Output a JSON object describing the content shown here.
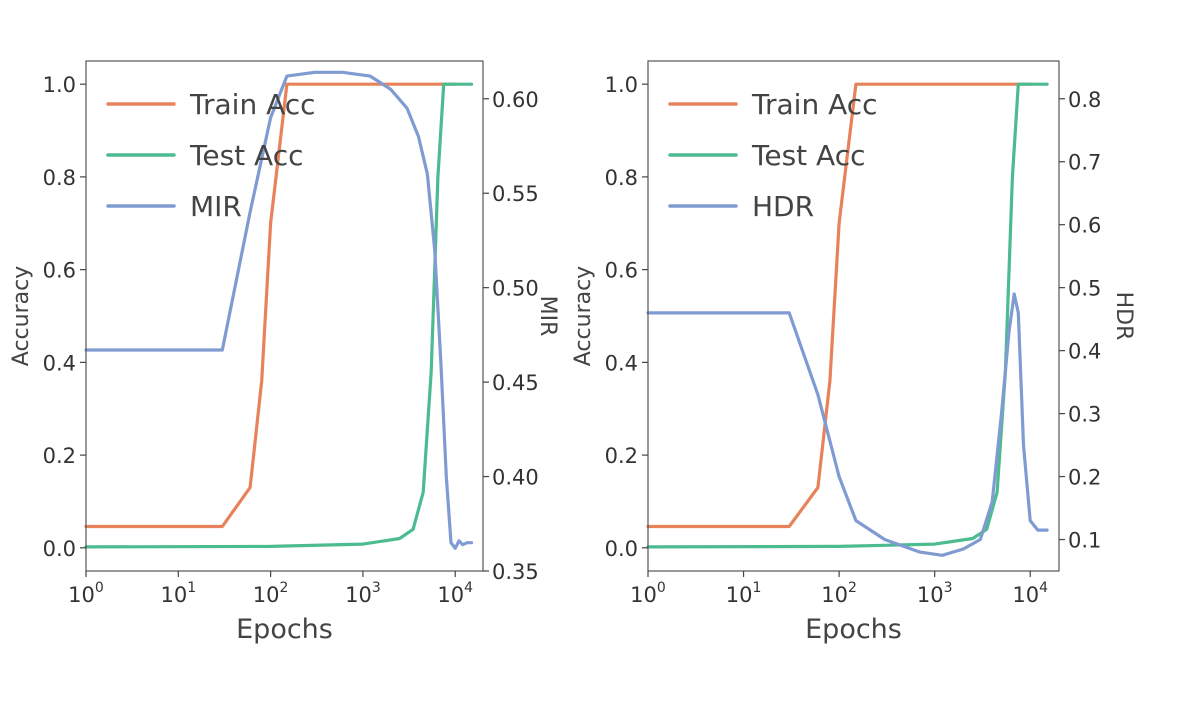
{
  "chart_data": [
    {
      "type": "line",
      "xlabel": "Epochs",
      "ylabel": "Accuracy",
      "y2label": "MIR",
      "xscale": "log",
      "xlim": [
        1,
        20000
      ],
      "ylim": [
        -0.05,
        1.05
      ],
      "y2lim": [
        0.35,
        0.62
      ],
      "xticks": [
        {
          "base": "10",
          "exp": "0"
        },
        {
          "base": "10",
          "exp": "1"
        },
        {
          "base": "10",
          "exp": "2"
        },
        {
          "base": "10",
          "exp": "3"
        },
        {
          "base": "10",
          "exp": "4"
        }
      ],
      "xtick_values": [
        1,
        10,
        100,
        1000,
        10000
      ],
      "yticks": [
        "0.0",
        "0.2",
        "0.4",
        "0.6",
        "0.8",
        "1.0"
      ],
      "ytick_values": [
        0,
        0.2,
        0.4,
        0.6,
        0.8,
        1.0
      ],
      "y2ticks": [
        "0.35",
        "0.40",
        "0.45",
        "0.50",
        "0.55",
        "0.60"
      ],
      "y2tick_values": [
        0.35,
        0.4,
        0.45,
        0.5,
        0.55,
        0.6
      ],
      "legend_position": "top-left",
      "series": [
        {
          "name": "Train Acc",
          "axis": "left",
          "color": "#e8825a",
          "x": [
            1,
            30,
            60,
            80,
            100,
            150,
            1000,
            10000
          ],
          "y": [
            0.046,
            0.046,
            0.13,
            0.36,
            0.7,
            1.0,
            1.0,
            1.0
          ]
        },
        {
          "name": "Test Acc",
          "axis": "left",
          "color": "#4cbb8f",
          "x": [
            1,
            100,
            1000,
            2500,
            3500,
            4500,
            5500,
            6500,
            7500,
            8500,
            10000,
            15000
          ],
          "y": [
            0.002,
            0.003,
            0.008,
            0.02,
            0.04,
            0.12,
            0.38,
            0.8,
            1.0,
            1.0,
            1.0,
            1.0
          ]
        },
        {
          "name": "MIR",
          "axis": "right",
          "color": "#7f9bd1",
          "x": [
            1,
            30,
            60,
            100,
            150,
            300,
            600,
            1200,
            2000,
            3000,
            4000,
            5000,
            6000,
            7000,
            8000,
            9000,
            10000,
            11000,
            12000,
            13500,
            15000
          ],
          "y": [
            0.467,
            0.467,
            0.54,
            0.59,
            0.612,
            0.614,
            0.614,
            0.612,
            0.605,
            0.595,
            0.58,
            0.56,
            0.52,
            0.46,
            0.4,
            0.365,
            0.362,
            0.366,
            0.364,
            0.365,
            0.365
          ]
        }
      ]
    },
    {
      "type": "line",
      "xlabel": "Epochs",
      "ylabel": "Accuracy",
      "y2label": "HDR",
      "xscale": "log",
      "xlim": [
        1,
        20000
      ],
      "ylim": [
        -0.05,
        1.05
      ],
      "y2lim": [
        0.05,
        0.86
      ],
      "xticks": [
        {
          "base": "10",
          "exp": "0"
        },
        {
          "base": "10",
          "exp": "1"
        },
        {
          "base": "10",
          "exp": "2"
        },
        {
          "base": "10",
          "exp": "3"
        },
        {
          "base": "10",
          "exp": "4"
        }
      ],
      "xtick_values": [
        1,
        10,
        100,
        1000,
        10000
      ],
      "yticks": [
        "0.0",
        "0.2",
        "0.4",
        "0.6",
        "0.8",
        "1.0"
      ],
      "ytick_values": [
        0,
        0.2,
        0.4,
        0.6,
        0.8,
        1.0
      ],
      "y2ticks": [
        "0.1",
        "0.2",
        "0.3",
        "0.4",
        "0.5",
        "0.6",
        "0.7",
        "0.8"
      ],
      "y2tick_values": [
        0.1,
        0.2,
        0.3,
        0.4,
        0.5,
        0.6,
        0.7,
        0.8
      ],
      "legend_position": "top-left",
      "series": [
        {
          "name": "Train Acc",
          "axis": "left",
          "color": "#e8825a",
          "x": [
            1,
            30,
            60,
            80,
            100,
            150,
            1000,
            10000
          ],
          "y": [
            0.046,
            0.046,
            0.13,
            0.36,
            0.7,
            1.0,
            1.0,
            1.0
          ]
        },
        {
          "name": "Test Acc",
          "axis": "left",
          "color": "#4cbb8f",
          "x": [
            1,
            100,
            1000,
            2500,
            3500,
            4500,
            5500,
            6500,
            7500,
            8500,
            10000,
            15000
          ],
          "y": [
            0.002,
            0.003,
            0.008,
            0.02,
            0.04,
            0.12,
            0.38,
            0.8,
            1.0,
            1.0,
            1.0,
            1.0
          ]
        },
        {
          "name": "HDR",
          "axis": "right",
          "color": "#7f9bd1",
          "x": [
            1,
            30,
            60,
            100,
            150,
            300,
            700,
            1200,
            2000,
            3000,
            4000,
            5000,
            6000,
            6800,
            7500,
            8500,
            10000,
            12000,
            15000
          ],
          "y": [
            0.46,
            0.46,
            0.33,
            0.2,
            0.13,
            0.1,
            0.08,
            0.075,
            0.085,
            0.1,
            0.16,
            0.3,
            0.43,
            0.49,
            0.46,
            0.25,
            0.13,
            0.115,
            0.115
          ]
        }
      ]
    }
  ]
}
